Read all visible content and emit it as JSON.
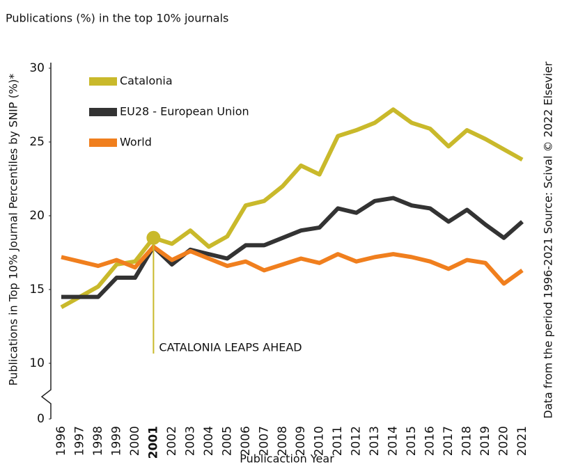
{
  "chart_data": {
    "type": "line",
    "title": "Publications (%) in the top 10% journals",
    "y_label": "Publications in Top 10% Journal Percentiles by SNIP (%)*",
    "x_label": "Publicaction Year",
    "source": "Data from the period 1996-2021 Source: Scival © 2022  Elsevier",
    "categories": [
      "1996",
      "1997",
      "1998",
      "1999",
      "2000",
      "2001",
      "2002",
      "2003",
      "2004",
      "2005",
      "2006",
      "2007",
      "2008",
      "2009",
      "2010",
      "2011",
      "2012",
      "2013",
      "2014",
      "2015",
      "2016",
      "2017",
      "2018",
      "2019",
      "2020",
      "2021"
    ],
    "series": [
      {
        "name": "Catalonia",
        "color": "#c9b92b",
        "values": [
          13.8,
          14.5,
          15.2,
          16.7,
          16.9,
          18.5,
          18.1,
          19.0,
          17.9,
          18.6,
          20.7,
          21.0,
          22.0,
          23.4,
          22.8,
          25.4,
          25.8,
          26.3,
          27.2,
          26.3,
          25.9,
          24.7,
          25.8,
          25.2,
          24.5,
          23.8
        ]
      },
      {
        "name": "EU28 - European Union",
        "color": "#333333",
        "values": [
          14.5,
          14.5,
          14.5,
          15.8,
          15.8,
          17.9,
          16.7,
          17.7,
          17.4,
          17.1,
          18.0,
          18.0,
          18.5,
          19.0,
          19.2,
          20.5,
          20.2,
          21.0,
          21.2,
          20.7,
          20.5,
          19.6,
          20.4,
          19.4,
          18.5,
          19.6
        ]
      },
      {
        "name": "World",
        "color": "#f07f1e",
        "values": [
          17.2,
          16.9,
          16.6,
          17.0,
          16.5,
          17.9,
          17.0,
          17.6,
          17.1,
          16.6,
          16.9,
          16.3,
          16.7,
          17.1,
          16.8,
          17.4,
          16.9,
          17.2,
          17.4,
          17.2,
          16.9,
          16.4,
          17.0,
          16.8,
          15.4,
          16.3
        ]
      }
    ],
    "ylim": [
      0,
      30
    ],
    "y_break": [
      0,
      10
    ],
    "yticks": [
      0,
      10,
      15,
      20,
      25,
      30
    ],
    "annotation": {
      "text": "CATALONIA LEAPS AHEAD",
      "x": "2001"
    }
  }
}
